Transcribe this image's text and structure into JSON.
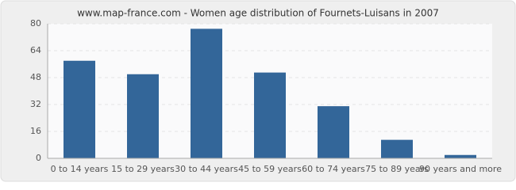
{
  "chart_data": {
    "type": "bar",
    "title": "www.map-france.com - Women age distribution of Fournets-Luisans in 2007",
    "categories": [
      "0 to 14 years",
      "15 to 29 years",
      "30 to 44 years",
      "45 to 59 years",
      "60 to 74 years",
      "75 to 89 years",
      "90 years and more"
    ],
    "values": [
      58,
      50,
      77,
      51,
      31,
      11,
      2
    ],
    "color": "#336699",
    "ylim": [
      0,
      80
    ],
    "yticks": [
      0,
      16,
      32,
      48,
      64,
      80
    ],
    "grid": true
  }
}
